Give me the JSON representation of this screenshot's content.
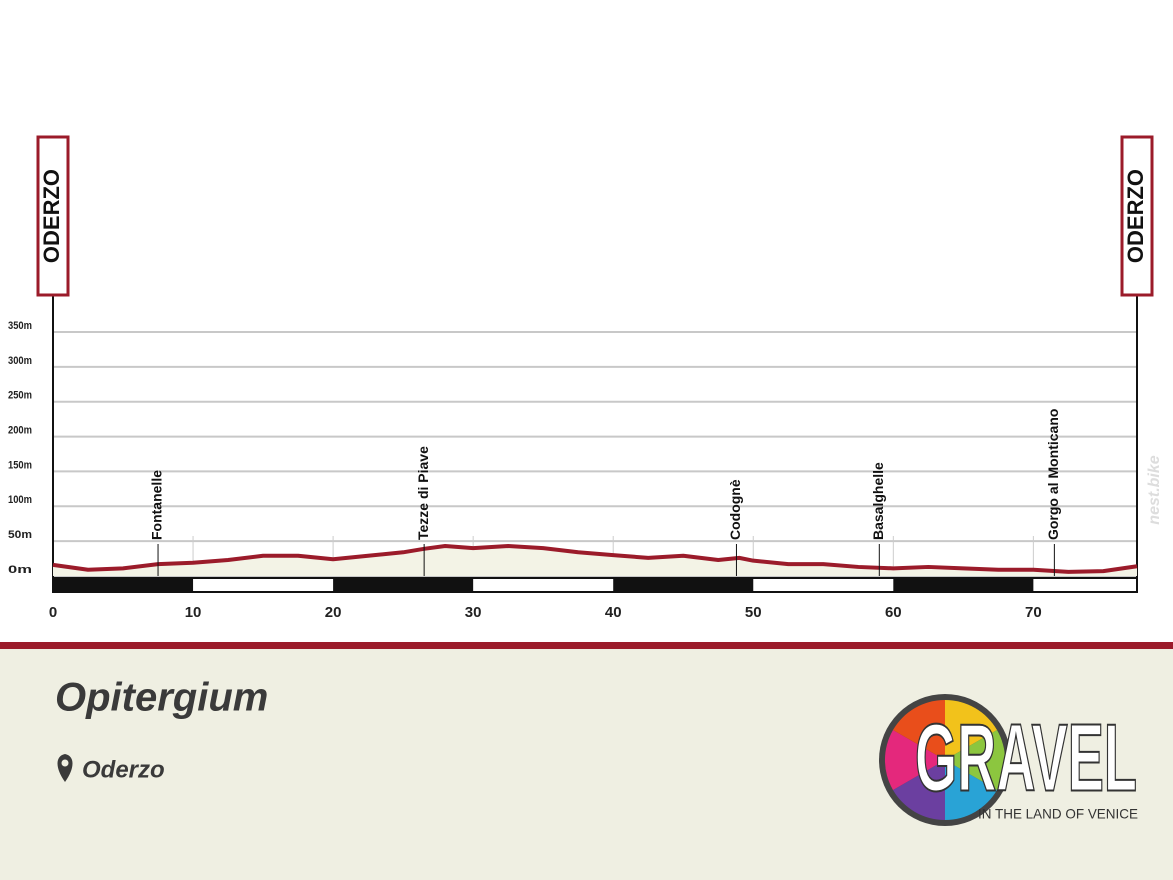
{
  "chart_data": {
    "type": "area",
    "start_label": "ODERZO",
    "finish_label": "ODERZO",
    "x": [
      0,
      2.5,
      5,
      7.5,
      10,
      12.5,
      15,
      17.5,
      20,
      22.5,
      25,
      26.5,
      28,
      30,
      32.5,
      35,
      37.5,
      40,
      42.5,
      45,
      47.5,
      49,
      50,
      52.5,
      55,
      57.5,
      60,
      62.5,
      65,
      67.5,
      70,
      72.5,
      75,
      77.4
    ],
    "values": [
      16,
      9,
      11,
      17,
      19,
      23,
      29,
      29,
      24,
      29,
      34,
      39,
      43,
      40,
      43,
      40,
      34,
      30,
      26,
      29,
      23,
      26,
      22,
      17,
      17,
      13,
      11,
      13,
      11,
      9,
      9,
      6,
      7,
      14
    ],
    "color": "#9b1b2a",
    "fill": "#f3f3e6",
    "xlim": [
      0,
      77.4
    ],
    "xticks": [
      0,
      10,
      20,
      30,
      40,
      50,
      60,
      70
    ],
    "ylim": [
      0,
      350
    ],
    "yticks": [
      {
        "value": 0,
        "label": "0m"
      },
      {
        "value": 50,
        "label": "50m"
      },
      {
        "value": 100,
        "label": "100m"
      },
      {
        "value": 150,
        "label": "150m"
      },
      {
        "value": 200,
        "label": "200m"
      },
      {
        "value": 250,
        "label": "250m"
      },
      {
        "value": 300,
        "label": "300m"
      },
      {
        "value": 350,
        "label": "350m"
      }
    ],
    "grid": true,
    "annotations": [
      {
        "label": "Fontanelle",
        "x": 7.5
      },
      {
        "label": "Tezze di Piave",
        "x": 26.5
      },
      {
        "label": "Codognè",
        "x": 48.8
      },
      {
        "label": "Basalghelle",
        "x": 59
      },
      {
        "label": "Gorgo al Monticano",
        "x": 71.5
      }
    ]
  },
  "watermark": "nest.bike",
  "footer": {
    "title": "Opitergium",
    "location": "Oderzo"
  },
  "logo": {
    "word": "GRAVEL",
    "tagline": "IN THE LAND OF VENICE"
  }
}
